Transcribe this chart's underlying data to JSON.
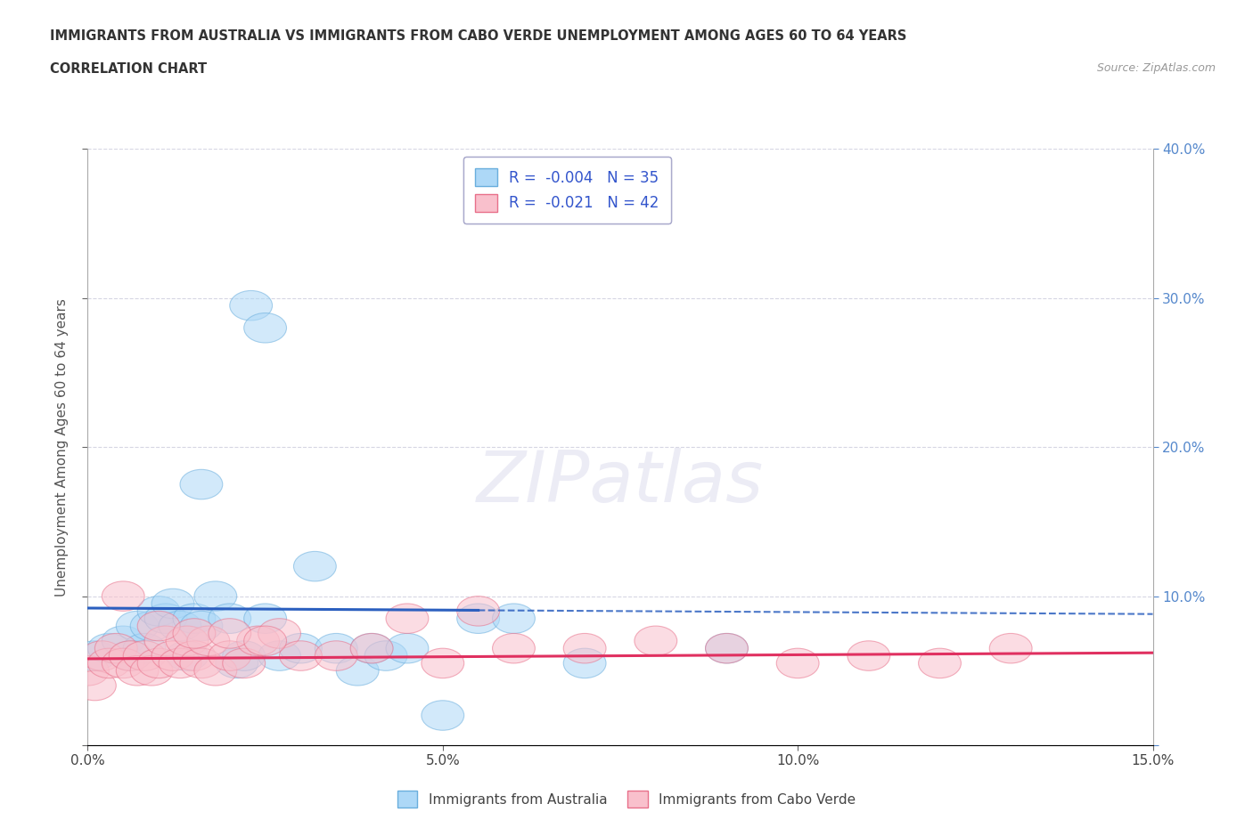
{
  "title_line1": "IMMIGRANTS FROM AUSTRALIA VS IMMIGRANTS FROM CABO VERDE UNEMPLOYMENT AMONG AGES 60 TO 64 YEARS",
  "title_line2": "CORRELATION CHART",
  "source_text": "Source: ZipAtlas.com",
  "ylabel": "Unemployment Among Ages 60 to 64 years",
  "xlim": [
    0.0,
    0.15
  ],
  "ylim": [
    0.0,
    0.4
  ],
  "xticks": [
    0.0,
    0.05,
    0.1,
    0.15
  ],
  "xtick_labels": [
    "0.0%",
    "5.0%",
    "10.0%",
    "15.0%"
  ],
  "yticks": [
    0.0,
    0.1,
    0.2,
    0.3,
    0.4
  ],
  "ytick_labels_right": [
    "",
    "10.0%",
    "20.0%",
    "30.0%",
    "40.0%"
  ],
  "australia_color": "#ADD8F7",
  "cabo_verde_color": "#F9C0CC",
  "australia_edge_color": "#6AAEDD",
  "cabo_verde_edge_color": "#E8708A",
  "australia_line_color": "#2B5FBF",
  "cabo_verde_line_color": "#E03060",
  "r_australia": -0.004,
  "n_australia": 35,
  "r_cabo_verde": -0.021,
  "n_cabo_verde": 42,
  "watermark": "ZIPatlas",
  "legend_text_color": "#3355CC",
  "grid_color": "#CCCCDD",
  "aus_trend_y_start": 0.092,
  "aus_trend_y_end": 0.088,
  "cabo_trend_y_start": 0.058,
  "cabo_trend_y_end": 0.062,
  "australia_x": [
    0.001,
    0.003,
    0.005,
    0.006,
    0.007,
    0.008,
    0.009,
    0.01,
    0.011,
    0.012,
    0.013,
    0.014,
    0.015,
    0.016,
    0.018,
    0.02,
    0.021,
    0.022,
    0.023,
    0.025,
    0.027,
    0.03,
    0.032,
    0.035,
    0.038,
    0.04,
    0.042,
    0.045,
    0.05,
    0.055,
    0.06,
    0.07,
    0.09,
    0.016,
    0.025
  ],
  "australia_y": [
    0.06,
    0.065,
    0.07,
    0.06,
    0.08,
    0.065,
    0.08,
    0.09,
    0.085,
    0.095,
    0.08,
    0.06,
    0.085,
    0.08,
    0.1,
    0.085,
    0.055,
    0.06,
    0.295,
    0.085,
    0.06,
    0.065,
    0.12,
    0.065,
    0.05,
    0.065,
    0.06,
    0.065,
    0.02,
    0.085,
    0.085,
    0.055,
    0.065,
    0.175,
    0.28
  ],
  "cabo_verde_x": [
    0.0,
    0.001,
    0.002,
    0.003,
    0.004,
    0.005,
    0.006,
    0.007,
    0.008,
    0.009,
    0.01,
    0.011,
    0.012,
    0.013,
    0.014,
    0.015,
    0.016,
    0.017,
    0.018,
    0.02,
    0.022,
    0.024,
    0.027,
    0.03,
    0.035,
    0.04,
    0.045,
    0.05,
    0.055,
    0.06,
    0.07,
    0.08,
    0.09,
    0.1,
    0.11,
    0.12,
    0.13,
    0.005,
    0.01,
    0.015,
    0.02,
    0.025
  ],
  "cabo_verde_y": [
    0.05,
    0.04,
    0.06,
    0.055,
    0.065,
    0.055,
    0.06,
    0.05,
    0.06,
    0.05,
    0.055,
    0.07,
    0.06,
    0.055,
    0.07,
    0.06,
    0.055,
    0.07,
    0.05,
    0.06,
    0.055,
    0.07,
    0.075,
    0.06,
    0.06,
    0.065,
    0.085,
    0.055,
    0.09,
    0.065,
    0.065,
    0.07,
    0.065,
    0.055,
    0.06,
    0.055,
    0.065,
    0.1,
    0.08,
    0.075,
    0.075,
    0.07
  ]
}
